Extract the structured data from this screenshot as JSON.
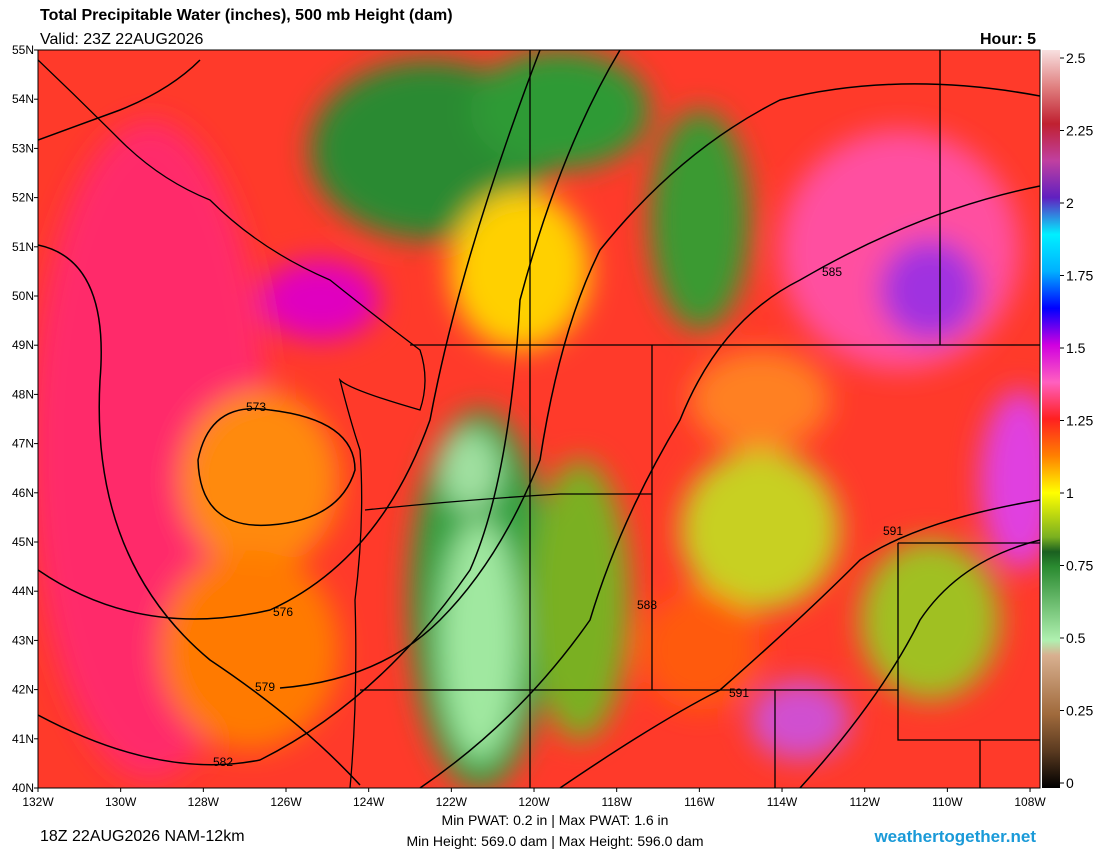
{
  "header": {
    "title": "Total Precipitable Water (inches), 500 mb Height (dam)",
    "valid": "Valid: 23Z 22AUG2026",
    "hour": "Hour: 5"
  },
  "map": {
    "latitude_labels": [
      "55N",
      "54N",
      "53N",
      "52N",
      "51N",
      "50N",
      "49N",
      "48N",
      "47N",
      "46N",
      "45N",
      "44N",
      "43N",
      "42N",
      "41N",
      "40N"
    ],
    "longitude_labels": [
      "132W",
      "130W",
      "128W",
      "126W",
      "124W",
      "122W",
      "120W",
      "118W",
      "116W",
      "114W",
      "112W",
      "110W",
      "108W"
    ],
    "contour_labels": [
      "573",
      "576",
      "579",
      "582",
      "585",
      "588",
      "591",
      "591"
    ]
  },
  "colorbar": {
    "ticks": [
      2.5,
      2.25,
      2,
      1.75,
      1.5,
      1.25,
      1,
      0.75,
      0.5,
      0.25,
      0
    ]
  },
  "footer": {
    "run": "18Z 22AUG2026 NAM-12km",
    "pwat": "Min PWAT:   0.2 in | Max PWAT:   1.6 in",
    "height": "Min Height: 569.0 dam | Max Height: 596.0 dam",
    "credit": "weathertogether.net"
  }
}
